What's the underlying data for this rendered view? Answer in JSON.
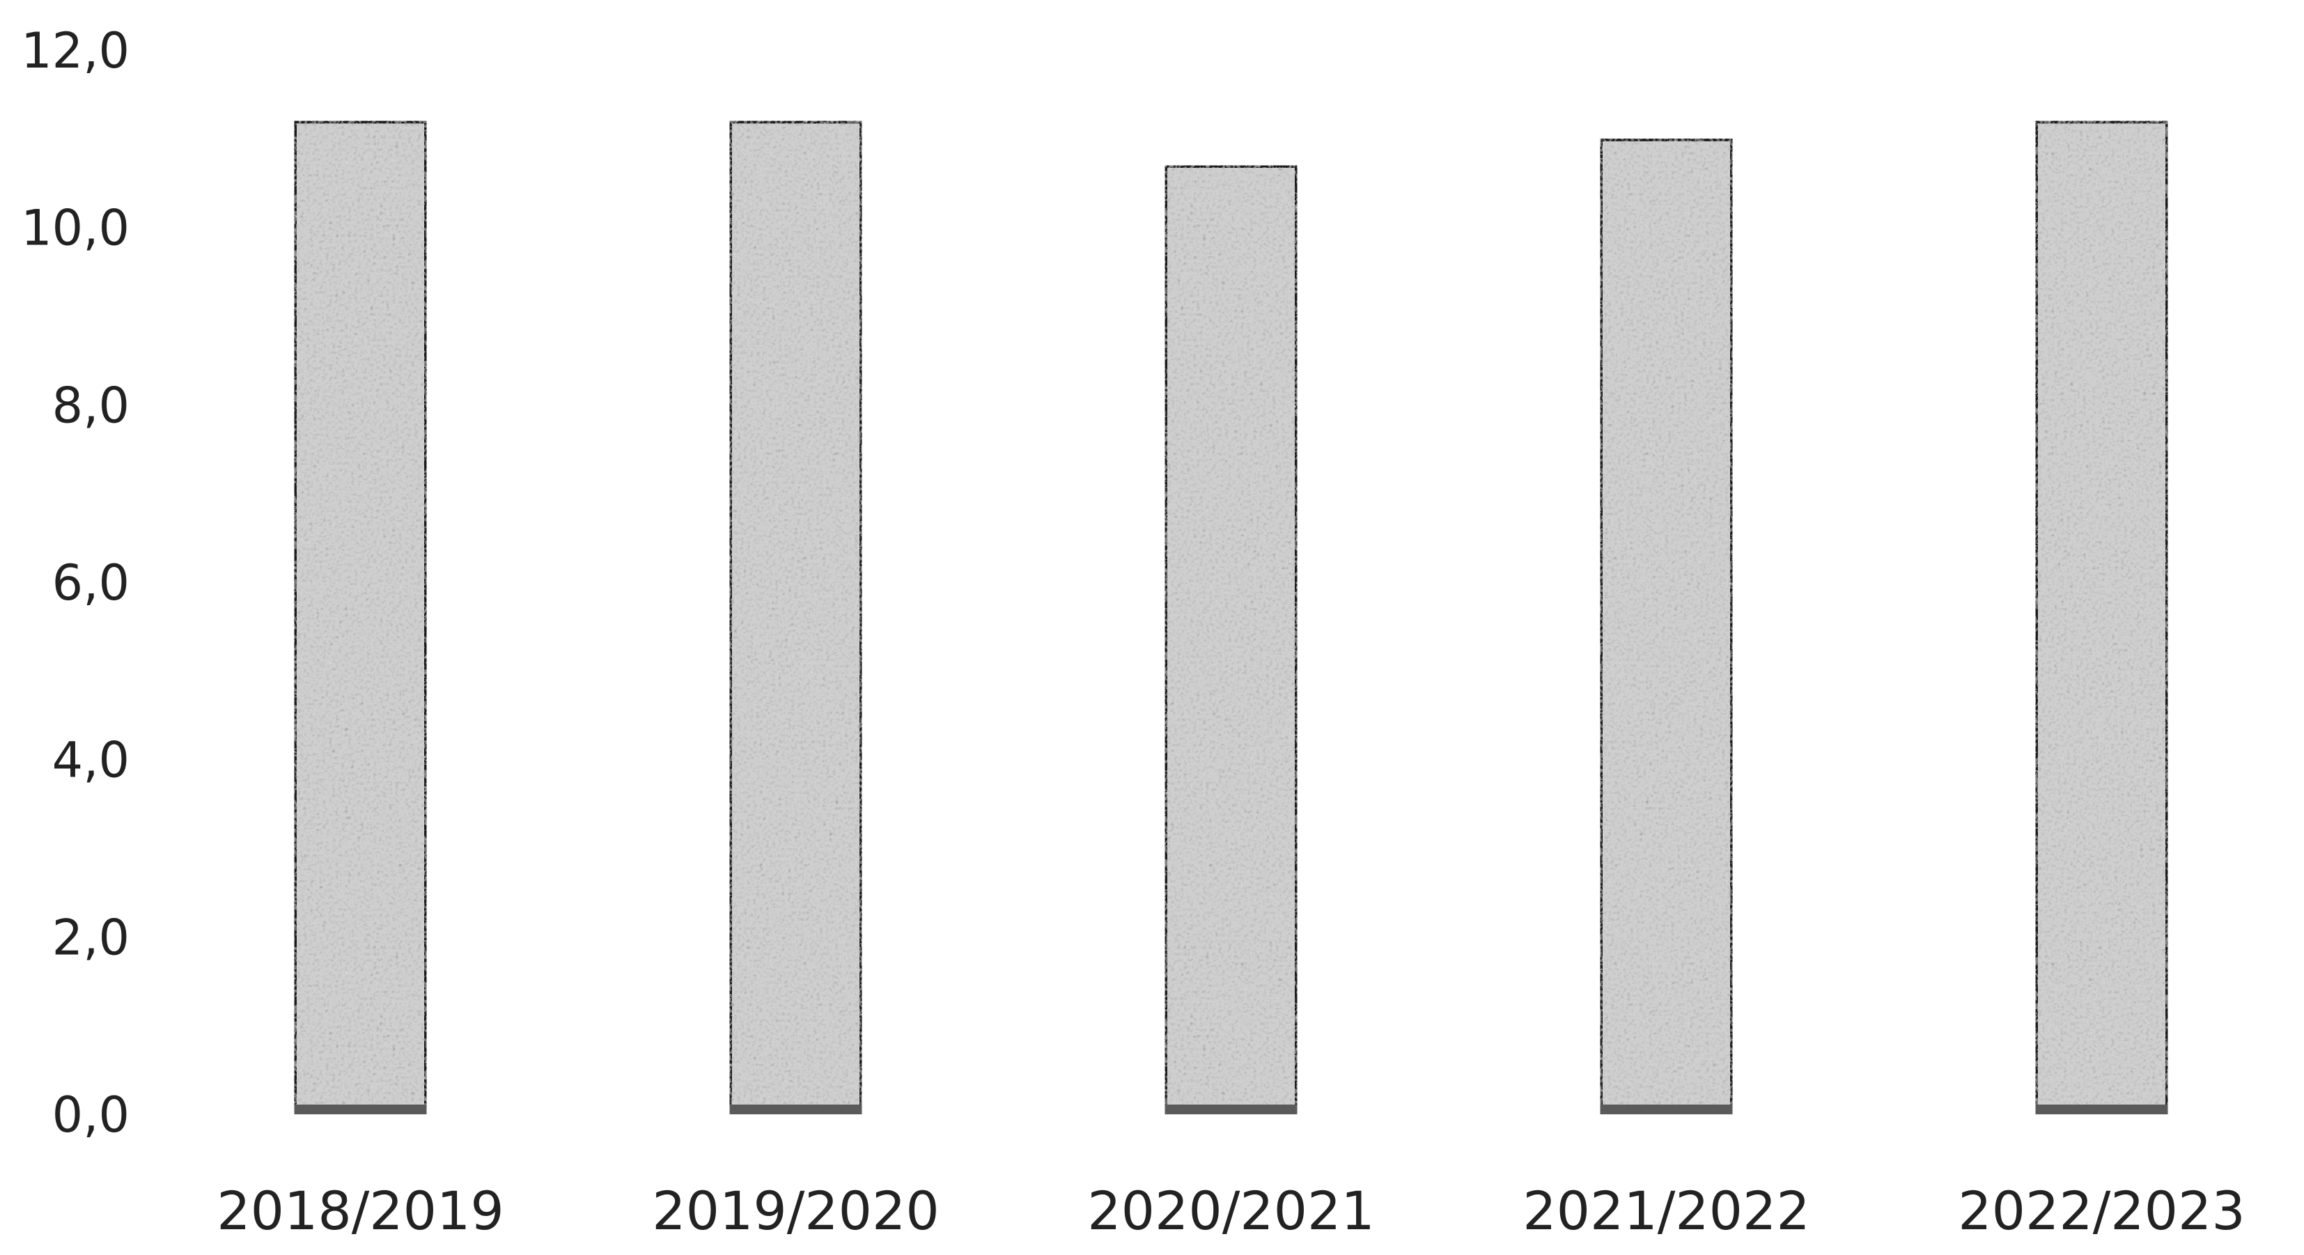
{
  "chart_data": {
    "type": "bar",
    "categories": [
      "2018/2019",
      "2019/2020",
      "2020/2021",
      "2021/2022",
      "2022/2023"
    ],
    "values": [
      11.2,
      11.2,
      10.7,
      11.0,
      11.2
    ],
    "title": "",
    "xlabel": "",
    "ylabel": "",
    "ylim": [
      0,
      12
    ],
    "yticks": [
      "0,0",
      "2,0",
      "4,0",
      "6,0",
      "8,0",
      "10,0",
      "12,0"
    ],
    "grid": false,
    "legend": "none",
    "colors": {
      "bar_fill": "#cfcfcf",
      "bar_outline": "#1a1a1a",
      "texture": "#5a5a5a"
    }
  }
}
